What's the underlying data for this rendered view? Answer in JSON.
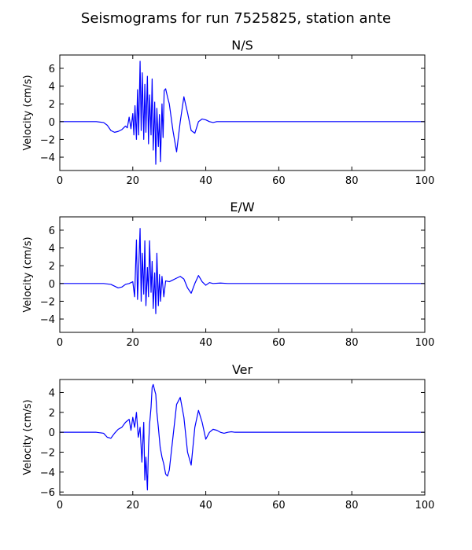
{
  "figure": {
    "suptitle": "Seismograms for run 7525825, station ante"
  },
  "chart_data": [
    {
      "type": "line",
      "title": "N/S",
      "xlabel": "",
      "ylabel": "Velocity (cm/s)",
      "xlim": [
        0,
        100
      ],
      "ylim": [
        -5.5,
        7.5
      ],
      "xticks": [
        0,
        20,
        40,
        60,
        80,
        100
      ],
      "yticks": [
        -4,
        -2,
        0,
        2,
        4,
        6
      ],
      "color": "#0000ff",
      "series": [
        {
          "x": [
            0,
            10,
            12,
            13,
            14,
            15,
            16,
            17,
            18,
            18.5,
            19,
            19.5,
            20,
            20.3,
            20.6,
            21,
            21.3,
            21.6,
            22,
            22.3,
            22.6,
            23,
            23.3,
            23.6,
            24,
            24.3,
            24.6,
            25,
            25.3,
            25.6,
            26,
            26.3,
            26.6,
            27,
            27.3,
            27.6,
            28,
            28.3,
            28.6,
            29,
            29.5,
            30,
            31,
            32,
            33,
            34,
            35,
            36,
            37,
            38,
            39,
            40,
            41,
            42,
            43,
            44,
            45,
            46,
            47,
            48,
            49,
            50,
            52,
            54,
            56,
            100
          ],
          "y": [
            0,
            0,
            -0.1,
            -0.4,
            -1.0,
            -1.2,
            -1.1,
            -0.9,
            -0.5,
            -0.7,
            0.5,
            -0.8,
            0.9,
            -1.5,
            1.8,
            -2.0,
            3.6,
            -1.5,
            6.8,
            -1.0,
            5.5,
            -2.0,
            4.2,
            -1.2,
            5.1,
            -2.5,
            3.0,
            -1.5,
            4.8,
            -3.2,
            2.2,
            -4.8,
            1.5,
            -2.8,
            0.8,
            -4.5,
            2.0,
            -1.8,
            3.5,
            3.7,
            2.8,
            2.0,
            -1.0,
            -3.4,
            0,
            2.8,
            1.0,
            -1.0,
            -1.3,
            0,
            0.3,
            0.2,
            0,
            -0.1,
            0,
            0,
            0,
            0,
            0,
            0,
            0,
            0,
            0,
            0,
            0,
            0
          ]
        }
      ]
    },
    {
      "type": "line",
      "title": "E/W",
      "xlabel": "",
      "ylabel": "Velocity (cm/s)",
      "xlim": [
        0,
        100
      ],
      "ylim": [
        -5.5,
        7.5
      ],
      "xticks": [
        0,
        20,
        40,
        60,
        80,
        100
      ],
      "yticks": [
        -4,
        -2,
        0,
        2,
        4,
        6
      ],
      "color": "#0000ff",
      "series": [
        {
          "x": [
            0,
            10,
            12,
            14,
            15,
            16,
            17,
            18,
            19,
            20,
            20.5,
            21,
            21.3,
            21.6,
            22,
            22.3,
            22.6,
            23,
            23.3,
            23.6,
            24,
            24.3,
            24.6,
            25,
            25.3,
            25.6,
            26,
            26.3,
            26.6,
            27,
            27.3,
            27.6,
            28,
            28.5,
            29,
            30,
            31,
            32,
            33,
            34,
            35,
            36,
            37,
            38,
            39,
            40,
            41,
            42,
            44,
            46,
            48,
            50,
            100
          ],
          "y": [
            0,
            0,
            0,
            -0.1,
            -0.3,
            -0.5,
            -0.4,
            -0.1,
            0,
            0.2,
            -1.5,
            4.9,
            -1.8,
            1.5,
            6.2,
            -2.0,
            3.4,
            -1.2,
            4.8,
            -2.5,
            1.8,
            -1.5,
            4.8,
            -1.0,
            2.5,
            -2.8,
            1.2,
            -3.4,
            3.4,
            -2.5,
            1.0,
            -2.0,
            0.8,
            -1.5,
            0.3,
            0.2,
            0.4,
            0.6,
            0.8,
            0.5,
            -0.5,
            -1.1,
            0,
            0.9,
            0.2,
            -0.2,
            0.1,
            0,
            0.05,
            0,
            0,
            0,
            0
          ]
        }
      ]
    },
    {
      "type": "line",
      "title": "Ver",
      "xlabel": "",
      "ylabel": "Velocity (cm/s)",
      "xlim": [
        0,
        100
      ],
      "ylim": [
        -6.3,
        5.3
      ],
      "xticks": [
        0,
        20,
        40,
        60,
        80,
        100
      ],
      "yticks": [
        -6,
        -4,
        -2,
        0,
        2,
        4
      ],
      "color": "#0000ff",
      "series": [
        {
          "x": [
            0,
            10,
            12,
            13,
            14,
            15,
            16,
            17,
            18,
            19,
            19.5,
            20,
            20.5,
            21,
            21.5,
            22,
            22.5,
            23,
            23.3,
            23.6,
            24,
            24.3,
            24.6,
            25,
            25.3,
            25.6,
            26,
            26.3,
            26.6,
            27,
            27.5,
            28,
            28.5,
            29,
            29.5,
            30,
            31,
            32,
            33,
            34,
            35,
            36,
            37,
            38,
            39,
            40,
            41,
            42,
            43,
            44,
            45,
            46,
            47,
            48,
            50,
            52,
            54,
            100
          ],
          "y": [
            0,
            0,
            -0.1,
            -0.5,
            -0.6,
            -0.1,
            0.3,
            0.5,
            1.0,
            1.3,
            0.2,
            1.5,
            0.5,
            2.0,
            -0.5,
            0.5,
            -3.0,
            1.0,
            -4.8,
            -2.5,
            -5.8,
            -1.5,
            0.8,
            2.5,
            4.5,
            4.8,
            4.2,
            3.8,
            2.0,
            0.5,
            -1.5,
            -2.5,
            -3.2,
            -4.2,
            -4.4,
            -3.8,
            -0.5,
            2.8,
            3.5,
            1.5,
            -2.0,
            -3.3,
            0.5,
            2.2,
            1.0,
            -0.7,
            0,
            0.3,
            0.2,
            0,
            -0.1,
            0,
            0.05,
            0,
            0,
            0,
            0,
            0
          ]
        }
      ]
    }
  ]
}
